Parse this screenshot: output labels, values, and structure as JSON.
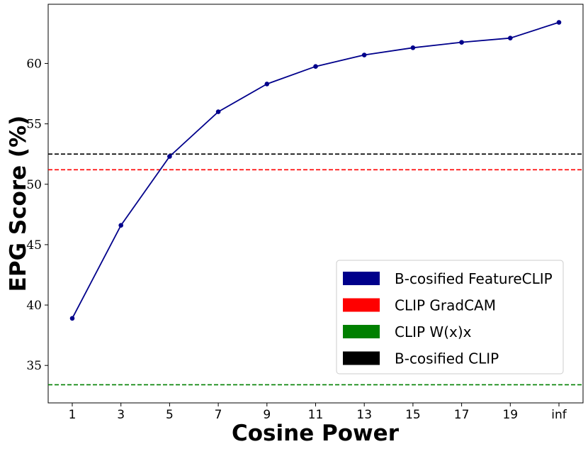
{
  "chart_data": {
    "type": "line",
    "xlabel": "Cosine Power",
    "ylabel": "EPG Score (%)",
    "categories": [
      "1",
      "3",
      "5",
      "7",
      "9",
      "11",
      "13",
      "15",
      "17",
      "19",
      "inf"
    ],
    "yticks": [
      35,
      40,
      45,
      50,
      55,
      60
    ],
    "ylim": [
      31.9,
      64.9
    ],
    "grid": false,
    "legend_position": "lower-right",
    "series": [
      {
        "name": "B-cosified FeatureCLIP",
        "color": "#00008b",
        "style": "line-with-markers",
        "values": [
          38.9,
          46.6,
          52.3,
          56.0,
          58.3,
          59.75,
          60.7,
          61.3,
          61.75,
          62.1,
          63.4
        ]
      }
    ],
    "reference_lines": [
      {
        "name": "CLIP GradCAM",
        "color": "#ff0000",
        "style": "dashed",
        "value": 51.2
      },
      {
        "name": "CLIP W(x)x",
        "color": "#008000",
        "style": "dashed",
        "value": 33.4
      },
      {
        "name": "B-cosified CLIP",
        "color": "#000000",
        "style": "dashed",
        "value": 52.5
      }
    ],
    "legend": [
      {
        "label": "B-cosified FeatureCLIP",
        "color": "#00008b"
      },
      {
        "label": "CLIP GradCAM",
        "color": "#ff0000"
      },
      {
        "label": "CLIP W(x)x",
        "color": "#008000"
      },
      {
        "label": "B-cosified CLIP",
        "color": "#000000"
      }
    ]
  }
}
